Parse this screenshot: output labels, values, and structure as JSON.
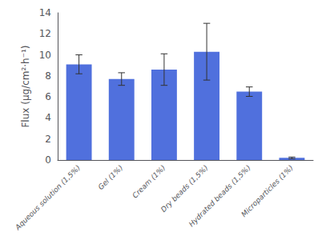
{
  "chart_data": {
    "type": "bar",
    "categories": [
      "Aqueous solution (1,5%)",
      "Gel (1%)",
      "Cream (1%)",
      "Dry beads (1,5%)",
      "Hydrated beads (1,5%)",
      "Microparticles (1%)"
    ],
    "values": [
      9.1,
      7.7,
      8.6,
      10.3,
      6.5,
      0.2
    ],
    "errors": [
      0.9,
      0.6,
      1.5,
      2.7,
      0.45,
      0.08
    ],
    "ylabel": "Flux (μg/cm²·h⁻¹)",
    "ylim": [
      0,
      14
    ],
    "yticks": [
      0,
      2,
      4,
      6,
      8,
      10,
      12,
      14
    ],
    "grid": false
  }
}
